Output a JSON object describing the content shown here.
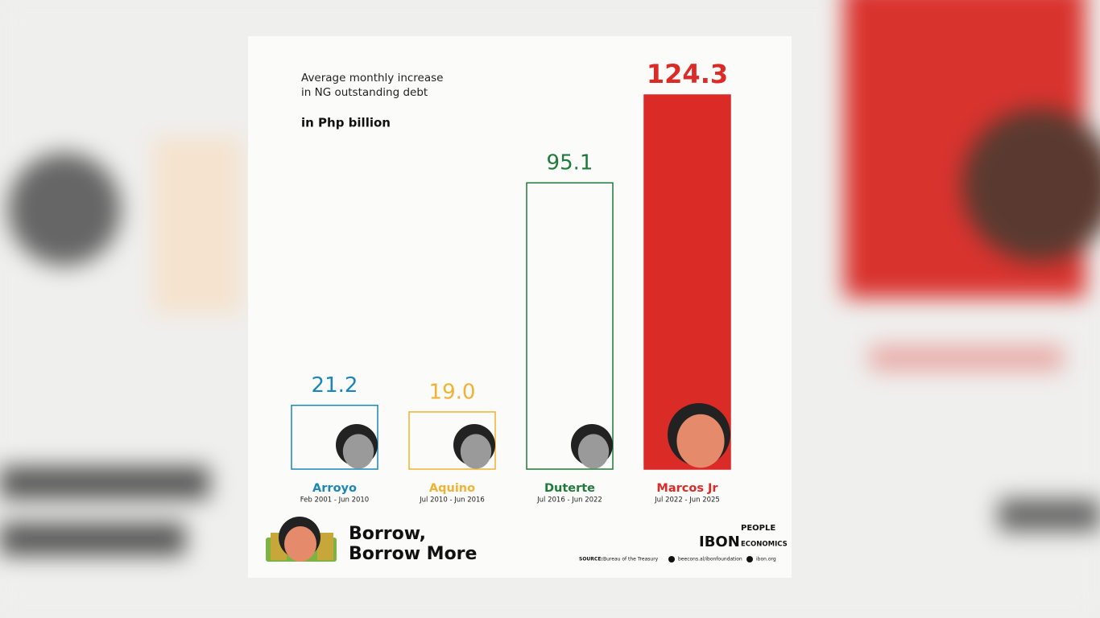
{
  "chart_data": {
    "type": "bar",
    "title": [
      "Average monthly increase",
      "in NG outstanding debt"
    ],
    "subtitle": "in Php billion",
    "categories": [
      "Arroyo",
      "Aquino",
      "Duterte",
      "Marcos Jr"
    ],
    "periods": [
      "Feb 2001 - Jun 2010",
      "Jul 2010 - Jun 2016",
      "Jul 2016 - Jun 2022",
      "Jul 2022 - Jun 2025"
    ],
    "values": [
      21.2,
      19.0,
      95.1,
      124.3
    ],
    "value_labels": [
      "21.2",
      "19.0",
      "95.1",
      "124.3"
    ],
    "colors": [
      "#1b86b9",
      "#f1b232",
      "#1f7a3b",
      "#db2b27"
    ],
    "bar_style": [
      "outline",
      "outline",
      "outline",
      "solid"
    ]
  },
  "footer": {
    "headline": [
      "Borrow,",
      "Borrow More"
    ],
    "source_label": "SOURCE:",
    "source": "Bureau of the Treasury",
    "links": [
      "beecons.al/ibonfoundation",
      "ibon.org"
    ],
    "logos": [
      "IBON",
      "PEOPLE",
      "ECONOMICS"
    ]
  }
}
